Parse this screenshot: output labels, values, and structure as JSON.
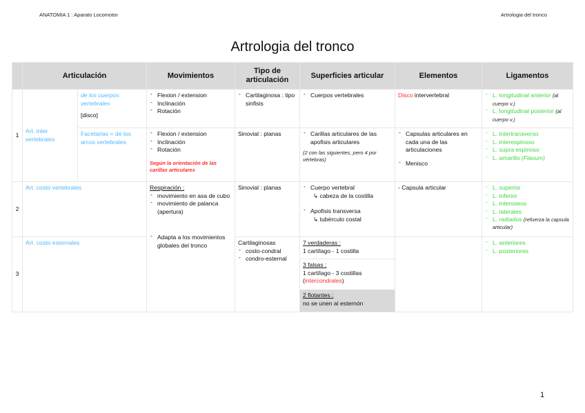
{
  "header": {
    "left": "ANATOMIA 1 : Aparato Locomotor",
    "right": "Artrologia del tronco"
  },
  "title": "Artrologia del tronco",
  "page_number": "1",
  "columns": [
    "Articulación",
    "Movimientos",
    "Tipo de articulación",
    "Superficies articular",
    "Elementos",
    "Ligamentos"
  ],
  "rows": {
    "r1": {
      "num": "1",
      "name": "Art. inter vertebrales",
      "a": {
        "sub": "de los cuerpos vertebrales",
        "sub_note": "[disco]",
        "mov": [
          "Flexion / extension",
          "Inclinación",
          "Rotación"
        ],
        "tipo": "Cartilaginosa : tipo sinfisis",
        "sup": [
          "Cuerpos vertebrales"
        ],
        "elem_red": "Disco",
        "elem_rest": " intervertebral",
        "lig": [
          {
            "t": "L. longitudinal anterior",
            "n": "(al cuerpo v.)"
          },
          {
            "t": "L. longitudinal posterior",
            "n": "(al cuerpo v.)"
          }
        ]
      },
      "b": {
        "sub": "Facetarias = de los arcos vertebrales",
        "mov": [
          "Flexion / extension",
          "Inclinación",
          "Rotación"
        ],
        "mov_note": "Según la orientación de las carillas articulares",
        "tipo": "Sinovial : planas",
        "sup": [
          "Carillas articulares de las apofisis articulares"
        ],
        "sup_note": "(2 con las siguientes, pero 4 por vértebras)",
        "elem": [
          "Capsulas articulares en cada una de las articulaciones",
          "Menisco"
        ],
        "lig": [
          "L. intertransverso",
          "L. interespinoso",
          "L. supra espinoso"
        ],
        "lig_last": "L. amarillo",
        "lig_last_note": "(Flavum)"
      }
    },
    "r2": {
      "num": "2",
      "name": "Art. costo vertebrales",
      "mov_title": "Respiración :",
      "mov": [
        "movimiento en asa de cubo",
        "movimiento de palanca (apertura)"
      ],
      "tipo": "Sinovial : planas",
      "sup": [
        {
          "t": "Cuerpo vertebral",
          "s": "↳ cabeza de la costilla"
        },
        {
          "t": "Apofisis transversa",
          "s": "↳ tubérculo costal"
        }
      ],
      "elem": "- Capsula articular",
      "lig": [
        "L. superior",
        "L. inferior",
        "L. interoseos",
        "L. laterales"
      ],
      "lig_last": "L. radiados",
      "lig_last_note": "(refuerza la capsula articular)"
    },
    "r3": {
      "num": "3",
      "name": "Art. costo esternales",
      "mov": [
        "Adapta a los movimientos globales del tronco"
      ],
      "tipo_title": "Cartilaginosas",
      "tipo": [
        "costo-condral",
        "condro-esternal"
      ],
      "sup": {
        "v_title": "7 verdaderas :",
        "v_text": "1 cartílago - 1 costilla",
        "f_title": "3 falsas :",
        "f_text": "1 cartílago - 3 costillas",
        "f_red": "intercondrales",
        "fl_title": "2 flotantes :",
        "fl_text": "no se unen al esternón"
      },
      "lig": [
        "L. anteriores",
        "L. posteriores"
      ]
    }
  }
}
